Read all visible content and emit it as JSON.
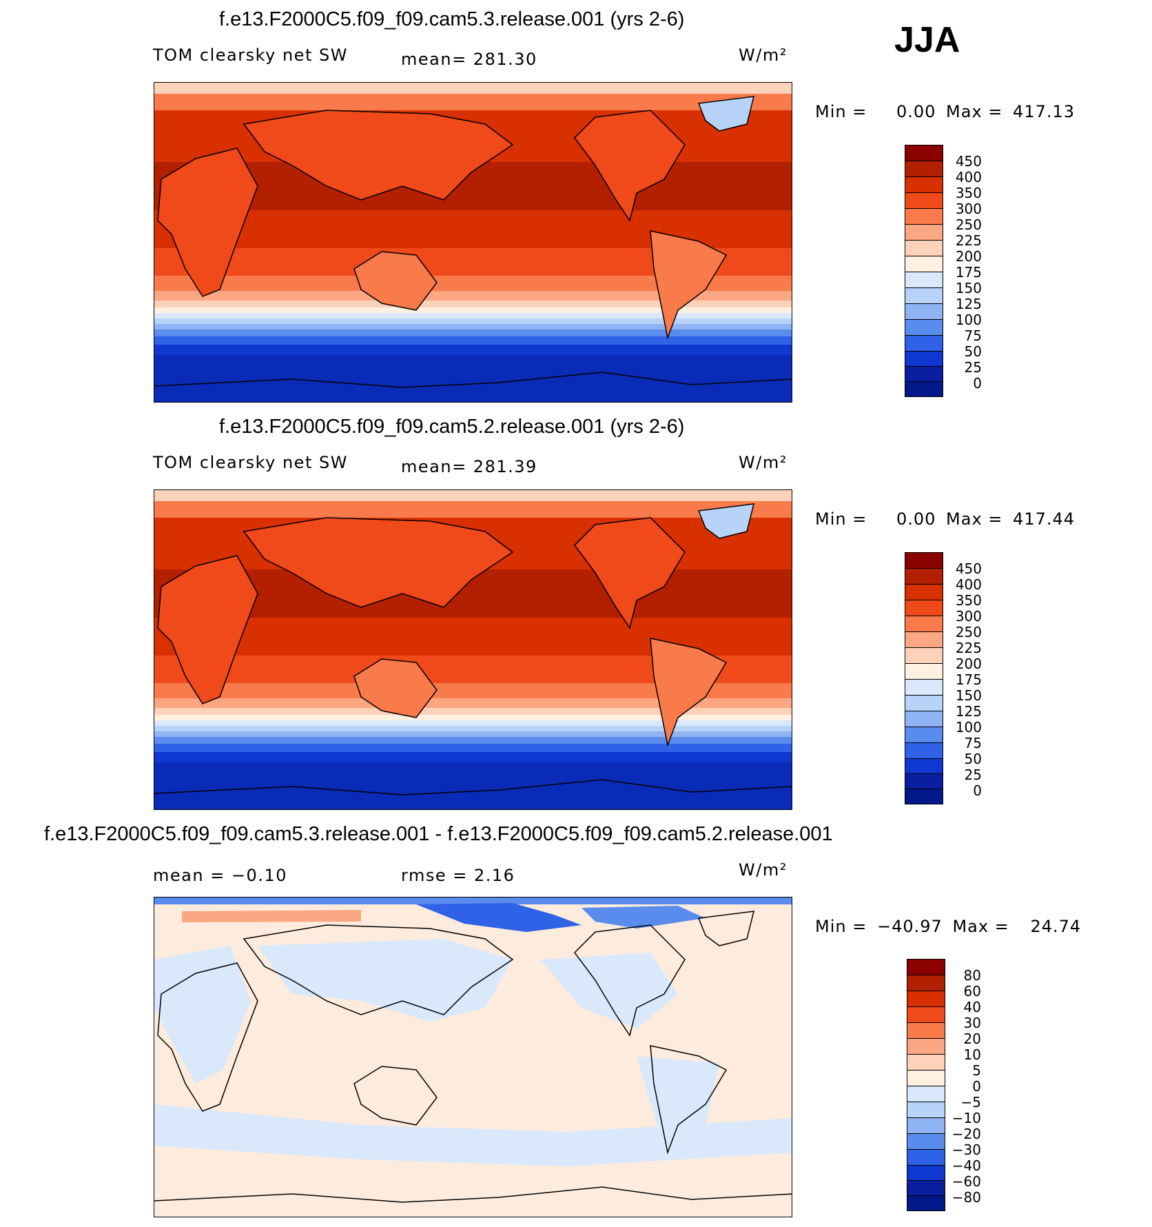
{
  "season": "JJA",
  "panels": [
    {
      "title": "f.e13.F2000C5.f09_f09.cam5.3.release.001 (yrs 2-6)",
      "left_label": "TOM clearsky net SW",
      "center_label": "mean= 281.30",
      "units": "W/m²",
      "min_label": "Min =",
      "min_value": "0.00",
      "max_label": "Max =",
      "max_value": "417.13",
      "colorbar_ticks": [
        "450",
        "400",
        "350",
        "300",
        "250",
        "225",
        "200",
        "175",
        "150",
        "125",
        "100",
        "75",
        "50",
        "25",
        "0"
      ]
    },
    {
      "title": "f.e13.F2000C5.f09_f09.cam5.2.release.001 (yrs 2-6)",
      "left_label": "TOM clearsky net SW",
      "center_label": "mean= 281.39",
      "units": "W/m²",
      "min_label": "Min =",
      "min_value": "0.00",
      "max_label": "Max =",
      "max_value": "417.44",
      "colorbar_ticks": [
        "450",
        "400",
        "350",
        "300",
        "250",
        "225",
        "200",
        "175",
        "150",
        "125",
        "100",
        "75",
        "50",
        "25",
        "0"
      ]
    },
    {
      "title": "f.e13.F2000C5.f09_f09.cam5.3.release.001 - f.e13.F2000C5.f09_f09.cam5.2.release.001",
      "left_label": "mean =   −0.10",
      "center_label": "rmse =    2.16",
      "units": "W/m²",
      "min_label": "Min =",
      "min_value": "−40.97",
      "max_label": "Max =",
      "max_value": "24.74",
      "colorbar_ticks": [
        "80",
        "60",
        "40",
        "30",
        "20",
        "10",
        "5",
        "0",
        "−5",
        "−10",
        "−20",
        "−30",
        "−40",
        "−60",
        "−80"
      ]
    }
  ],
  "colors": {
    "sw_scale": [
      "#8b0000",
      "#b22000",
      "#d93000",
      "#f04a1a",
      "#f97a4a",
      "#fca784",
      "#fdd2bb",
      "#fff0e2",
      "#d9e9fb",
      "#b8d3f8",
      "#8fb3f3",
      "#5a8cee",
      "#2f62e6",
      "#0e38d0",
      "#0a1fa0",
      "#00188a"
    ],
    "diff_scale": [
      "#8b0000",
      "#b22000",
      "#d93000",
      "#f04a1a",
      "#f97a4a",
      "#fca784",
      "#fdd2bb",
      "#fff0e2",
      "#d9e9fb",
      "#b8d3f8",
      "#8fb3f3",
      "#5a8cee",
      "#2f62e6",
      "#0e38d0",
      "#0a1fa0",
      "#00188a"
    ],
    "land_outline": "#000000"
  }
}
